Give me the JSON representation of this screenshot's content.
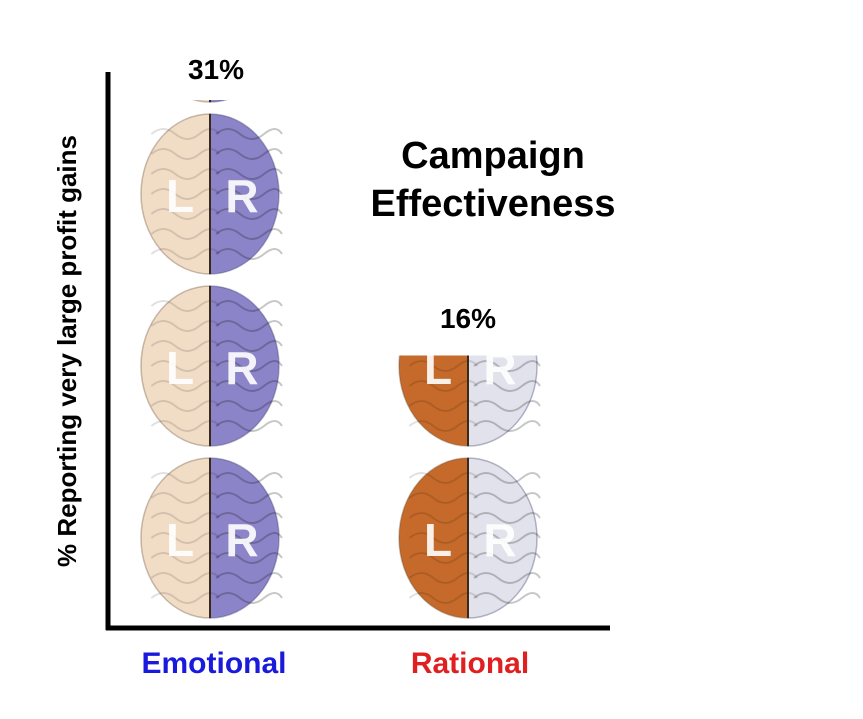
{
  "chart_data": {
    "type": "bar",
    "title": "Campaign Effectiveness",
    "title_lines": [
      "Campaign",
      "Effectiveness"
    ],
    "ylabel": "% Reporting very large profit gains",
    "xlabel": "",
    "categories": [
      "Emotional",
      "Rational"
    ],
    "values": [
      31,
      16
    ],
    "value_labels": [
      "31%",
      "16%"
    ],
    "ylim": [
      0,
      31
    ],
    "bar_style": "stacked brain pictograms",
    "hemisphere_labels": [
      "L",
      "R"
    ],
    "category_colors": [
      "#1a1adc",
      "#e02020"
    ],
    "brain_colors": {
      "Emotional": {
        "left": "#f1dcc6",
        "right": "#8c84c8"
      },
      "Rational": {
        "left": "#c56a2a",
        "right": "#e2e2ec"
      }
    }
  }
}
